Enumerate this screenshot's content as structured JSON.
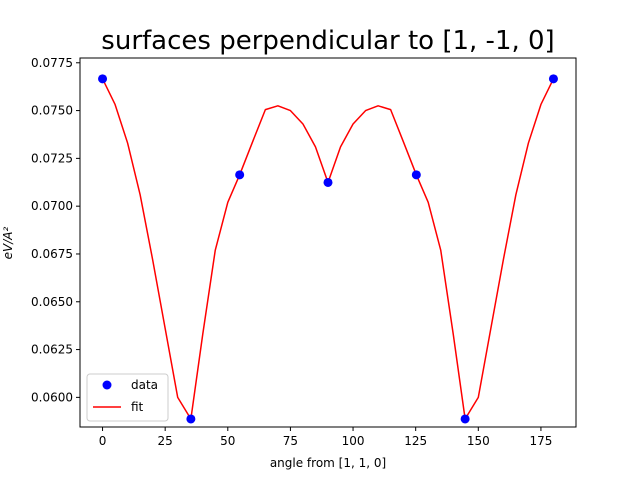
{
  "chart_data": {
    "type": "scatter",
    "title": "surfaces perpendicular to [1, -1, 0]",
    "xlabel": "angle from [1, 1, 0]",
    "ylabel": "eV/A²",
    "xlim": [
      -9,
      189
    ],
    "ylim": [
      0.05845,
      0.07775
    ],
    "x_ticks": [
      0,
      25,
      50,
      75,
      100,
      125,
      150,
      175
    ],
    "y_ticks": [
      0.06,
      0.0625,
      0.065,
      0.0675,
      0.07,
      0.0725,
      0.075,
      0.0775
    ],
    "y_tick_labels": [
      "0.0600",
      "0.0625",
      "0.0650",
      "0.0675",
      "0.0700",
      "0.0725",
      "0.0750",
      "0.0775"
    ],
    "grid": false,
    "legend": "lower-left",
    "series": [
      {
        "name": "data",
        "style": "markers",
        "color": "#0000ff",
        "x": [
          0,
          35.26,
          54.74,
          90,
          125.26,
          144.74,
          180
        ],
        "y": [
          0.07666,
          0.05887,
          0.07164,
          0.07124,
          0.07164,
          0.05887,
          0.07666
        ]
      },
      {
        "name": "fit",
        "style": "line",
        "color": "#ff0000",
        "x": [
          0,
          5,
          10,
          15,
          20,
          25,
          30,
          35.26,
          40,
          45,
          50,
          54.74,
          60,
          65,
          70,
          75,
          80,
          85,
          90,
          95,
          100,
          105,
          110,
          115,
          120,
          125.26,
          130,
          135,
          140,
          144.74,
          150,
          155,
          160,
          165,
          170,
          175,
          180
        ],
        "y": [
          0.07666,
          0.07532,
          0.0733,
          0.0706,
          0.0672,
          0.0636,
          0.06,
          0.05887,
          0.0633,
          0.0677,
          0.0702,
          0.07164,
          0.0734,
          0.07505,
          0.07525,
          0.075,
          0.0743,
          0.0731,
          0.07124,
          0.0731,
          0.0743,
          0.075,
          0.07525,
          0.07505,
          0.0734,
          0.07164,
          0.0702,
          0.0677,
          0.0633,
          0.05887,
          0.06,
          0.0636,
          0.0672,
          0.0706,
          0.0733,
          0.07532,
          0.07666
        ]
      }
    ]
  }
}
